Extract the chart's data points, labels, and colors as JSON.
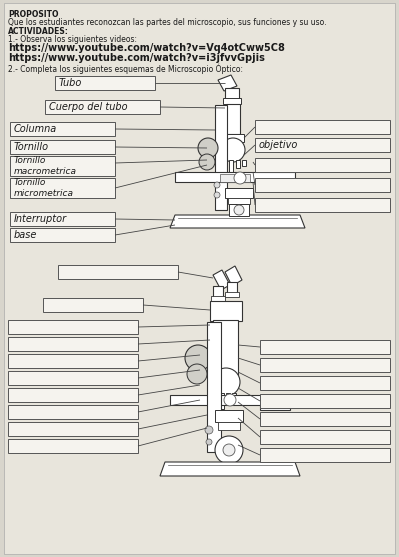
{
  "bg_color": "#d8d5cc",
  "page_bg": "#e8e5dc",
  "title": "PROPOSITO",
  "subtitle": "Que los estudiantes reconozcan las partes del microscopio, sus funciones y su uso.",
  "actividades": "ACTIVIDADES:",
  "item1": "1.- Observa los siguientes videos:",
  "url1": "https://www.youtube.com/watch?v=Vq4otCww5C8",
  "url2": "https://www.youtube.com/watch?v=i3jfvvGpjis",
  "item2": "2.- Completa los siguientes esquemas de Microscopio Óptico:",
  "text_color": "#1a1a1a",
  "box_color": "#f5f3ee",
  "box_edge": "#555555",
  "line_color": "#444444",
  "labels_left1": [
    "Tubo",
    "Cuerpo del tubo",
    "Columna",
    "Tornillo",
    "Tornillo\nmacrometrica",
    "Tornillo\nmicrometrica",
    "Interruptor",
    "base"
  ],
  "label_objetivo": "objetivo"
}
